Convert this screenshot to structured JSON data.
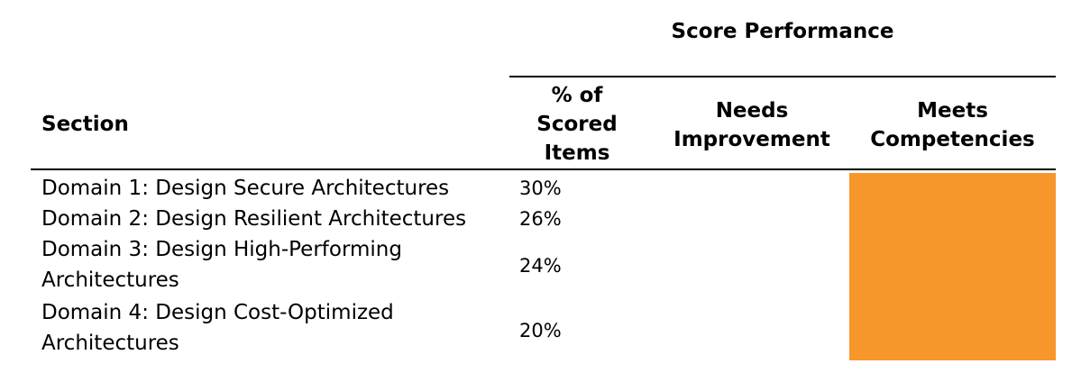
{
  "table": {
    "super_header": "Score Performance",
    "columns": {
      "section": "Section",
      "pct": "% of\nScored\nItems",
      "needs": "Needs\nImprovement",
      "meets": "Meets\nCompetencies"
    },
    "highlight_color": "#f7962a",
    "rows": [
      {
        "section": "Domain 1: Design Secure Architectures",
        "pct": "30%",
        "meets": true
      },
      {
        "section": "Domain 2: Design Resilient Architectures",
        "pct": "26%",
        "meets": true
      },
      {
        "section": "Domain 3: Design High-Performing Architectures",
        "pct": "24%",
        "meets": true
      },
      {
        "section": "Domain 4: Design Cost-Optimized Architectures",
        "pct": "20%",
        "meets": true
      }
    ]
  }
}
